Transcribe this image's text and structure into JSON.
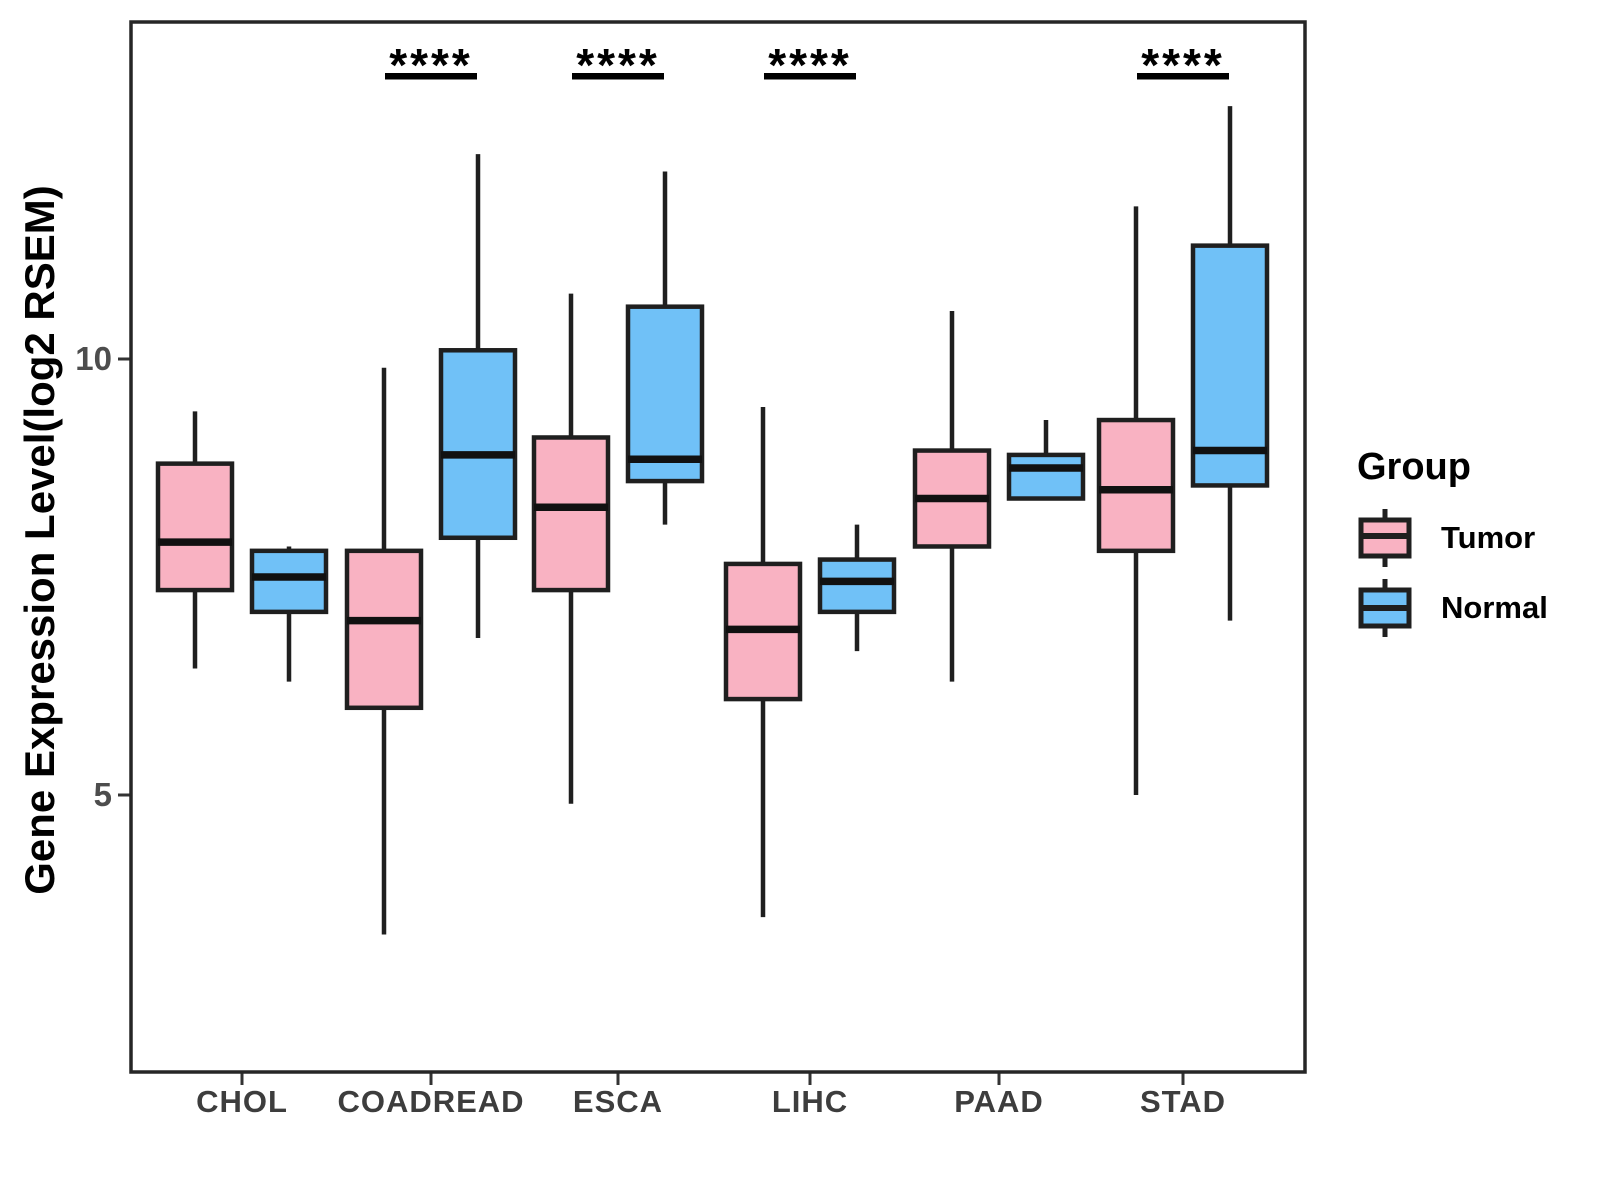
{
  "figure": {
    "ylabel": "Gene Expression Level(log2 RSEM)",
    "legend": {
      "title": "Group",
      "items": [
        {
          "label": "Tumor",
          "color": "#F9B2C2"
        },
        {
          "label": "Normal",
          "color": "#70C1F7"
        }
      ]
    },
    "colors": {
      "tumor_fill": "#F9B2C2",
      "normal_fill": "#70C1F7",
      "stroke": "#1F1F1F",
      "median": "#111111",
      "axis_text": "#4D4D4D",
      "panel_border": "#262626",
      "significance": "#000000"
    }
  },
  "chart_data": {
    "type": "boxplot",
    "title": "",
    "xlabel": "",
    "ylabel": "Gene Expression Level(log2 RSEM)",
    "categories": [
      "CHOL",
      "COADREAD",
      "ESCA",
      "LIHC",
      "PAAD",
      "STAD"
    ],
    "yticks": [
      5,
      10
    ],
    "ylim": [
      1.8,
      13.9
    ],
    "grid": false,
    "legend_position": "right",
    "series": [
      {
        "name": "Tumor",
        "color": "#F9B2C2",
        "boxes": [
          {
            "category": "CHOL",
            "min": 6.45,
            "q1": 7.35,
            "median": 7.9,
            "q3": 8.8,
            "max": 9.4
          },
          {
            "category": "COADREAD",
            "min": 3.4,
            "q1": 6.0,
            "median": 7.0,
            "q3": 7.8,
            "max": 9.9
          },
          {
            "category": "ESCA",
            "min": 4.9,
            "q1": 7.35,
            "median": 8.3,
            "q3": 9.1,
            "max": 10.75
          },
          {
            "category": "LIHC",
            "min": 3.6,
            "q1": 6.1,
            "median": 6.9,
            "q3": 7.65,
            "max": 9.45
          },
          {
            "category": "PAAD",
            "min": 6.3,
            "q1": 7.85,
            "median": 8.4,
            "q3": 8.95,
            "max": 10.55
          },
          {
            "category": "STAD",
            "min": 5.0,
            "q1": 7.8,
            "median": 8.5,
            "q3": 9.3,
            "max": 11.75
          }
        ]
      },
      {
        "name": "Normal",
        "color": "#70C1F7",
        "boxes": [
          {
            "category": "CHOL",
            "min": 6.3,
            "q1": 7.1,
            "median": 7.5,
            "q3": 7.8,
            "max": 7.85
          },
          {
            "category": "COADREAD",
            "min": 6.8,
            "q1": 7.95,
            "median": 8.9,
            "q3": 10.1,
            "max": 12.35
          },
          {
            "category": "ESCA",
            "min": 8.1,
            "q1": 8.6,
            "median": 8.85,
            "q3": 10.6,
            "max": 12.15
          },
          {
            "category": "LIHC",
            "min": 6.65,
            "q1": 7.1,
            "median": 7.45,
            "q3": 7.7,
            "max": 8.1
          },
          {
            "category": "PAAD",
            "min": 8.4,
            "q1": 8.4,
            "median": 8.75,
            "q3": 8.9,
            "max": 9.3
          },
          {
            "category": "STAD",
            "min": 7.0,
            "q1": 8.55,
            "median": 8.95,
            "q3": 11.3,
            "max": 12.9
          }
        ]
      }
    ],
    "significance": [
      {
        "category": "COADREAD",
        "label": "****"
      },
      {
        "category": "ESCA",
        "label": "****"
      },
      {
        "category": "LIHC",
        "label": "****"
      },
      {
        "category": "STAD",
        "label": "****"
      }
    ]
  }
}
